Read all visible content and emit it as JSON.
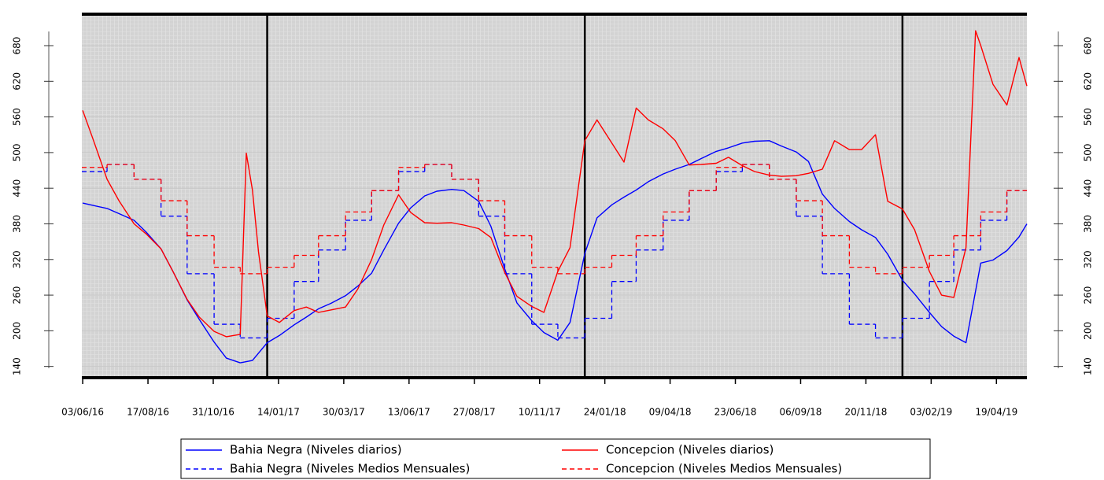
{
  "chart_data": {
    "type": "line",
    "xlim": [
      "02/06/16",
      "24/05/19"
    ],
    "ylim": [
      121,
      733
    ],
    "xticks": [
      "03/06/16",
      "17/08/16",
      "31/10/16",
      "14/01/17",
      "30/03/17",
      "13/06/17",
      "27/08/17",
      "10/11/17",
      "24/01/18",
      "09/04/18",
      "23/06/18",
      "06/09/18",
      "20/11/18",
      "03/02/19",
      "19/04/19"
    ],
    "yticks": [
      140,
      200,
      260,
      320,
      380,
      440,
      500,
      560,
      620,
      680
    ],
    "vlines": [
      "01/01/17",
      "01/01/18",
      "01/01/19"
    ],
    "grid": true,
    "legend": "bottom",
    "x": [
      "01/06/16",
      "01/07/16",
      "01/08/16",
      "01/09/16",
      "01/10/16",
      "01/11/16",
      "01/12/16",
      "01/01/17",
      "01/02/17",
      "01/03/17",
      "01/04/17",
      "01/05/17",
      "01/06/17",
      "01/07/17",
      "01/08/17",
      "01/09/17",
      "01/10/17",
      "01/11/17",
      "01/12/17",
      "01/01/18",
      "01/02/18",
      "01/03/18",
      "01/04/18",
      "01/05/18",
      "01/06/18",
      "01/07/18",
      "01/08/18",
      "01/09/18",
      "01/10/18",
      "01/11/18",
      "01/12/18",
      "01/01/19",
      "01/02/19",
      "01/03/19",
      "01/04/19",
      "01/05/19"
    ],
    "series": [
      {
        "name": "Bahia Negra (Niveles diarios)",
        "color": "#0000ff",
        "linestyle": "solid",
        "x": [
          "03/06/16",
          "15/06/16",
          "01/07/16",
          "15/07/16",
          "01/08/16",
          "15/08/16",
          "01/09/16",
          "15/09/16",
          "01/10/16",
          "15/10/16",
          "01/11/16",
          "15/11/16",
          "01/12/16",
          "15/12/16",
          "01/01/17",
          "15/01/17",
          "01/02/17",
          "15/02/17",
          "01/03/17",
          "15/03/17",
          "01/04/17",
          "15/04/17",
          "01/05/17",
          "15/05/17",
          "01/06/17",
          "15/06/17",
          "01/07/17",
          "15/07/17",
          "01/08/17",
          "15/08/17",
          "01/09/17",
          "15/09/17",
          "01/10/17",
          "15/10/17",
          "01/11/17",
          "15/11/17",
          "01/12/17",
          "15/12/17",
          "01/01/18",
          "15/01/18",
          "01/02/18",
          "15/02/18",
          "01/03/18",
          "15/03/18",
          "01/04/18",
          "15/04/18",
          "01/05/18",
          "15/05/18",
          "01/06/18",
          "15/06/18",
          "01/07/18",
          "15/07/18",
          "01/08/18",
          "15/08/18",
          "01/09/18",
          "15/09/18",
          "01/10/18",
          "15/10/18",
          "01/11/18",
          "15/11/18",
          "01/12/18",
          "15/12/18",
          "01/01/19",
          "15/01/19",
          "01/02/19",
          "15/02/19",
          "01/03/19",
          "15/03/19",
          "01/04/19",
          "15/04/19",
          "01/05/19",
          "15/05/19",
          "24/05/19"
        ],
        "values": [
          415,
          411,
          406,
          397,
          386,
          366,
          338,
          299,
          252,
          219,
          181,
          154,
          146,
          150,
          180,
          192,
          210,
          223,
          237,
          246,
          259,
          275,
          297,
          336,
          381,
          407,
          427,
          435,
          438,
          436,
          418,
          376,
          304,
          247,
          217,
          197,
          184,
          214,
          330,
          390,
          412,
          425,
          437,
          451,
          464,
          472,
          480,
          490,
          502,
          508,
          516,
          519,
          520,
          511,
          501,
          485,
          430,
          406,
          384,
          370,
          357,
          329,
          285,
          262,
          231,
          207,
          191,
          180,
          314,
          319,
          335,
          358,
          380
        ]
      },
      {
        "name": "Bahia Negra (Niveles Medios Mensuales)",
        "color": "#0000ff",
        "linestyle": "dashed",
        "drawstyle": "steps-post",
        "values": [
          468,
          480,
          455,
          393,
          296,
          211,
          188,
          221,
          283,
          336,
          386,
          436,
          468,
          480,
          455,
          393,
          296,
          211,
          188,
          221,
          283,
          336,
          386,
          436,
          468,
          480,
          455,
          393,
          296,
          211,
          188,
          221,
          283,
          336,
          386,
          436
        ]
      },
      {
        "name": "Concepcion (Niveles diarios)",
        "color": "#ff0000",
        "linestyle": "solid",
        "x": [
          "03/06/16",
          "15/06/16",
          "01/07/16",
          "15/07/16",
          "01/08/16",
          "15/08/16",
          "01/09/16",
          "15/09/16",
          "01/10/16",
          "15/10/16",
          "01/11/16",
          "15/11/16",
          "01/12/16",
          "08/12/16",
          "15/12/16",
          "22/12/16",
          "01/01/17",
          "15/01/17",
          "01/02/17",
          "15/02/17",
          "01/03/17",
          "15/03/17",
          "01/04/17",
          "15/04/17",
          "01/05/17",
          "15/05/17",
          "01/06/17",
          "15/06/17",
          "01/07/17",
          "15/07/17",
          "01/08/17",
          "15/08/17",
          "01/09/17",
          "15/09/17",
          "01/10/17",
          "15/10/17",
          "01/11/17",
          "15/11/17",
          "01/12/17",
          "15/12/17",
          "01/01/18",
          "15/01/18",
          "01/02/18",
          "15/02/18",
          "01/03/18",
          "15/03/18",
          "01/04/18",
          "15/04/18",
          "01/05/18",
          "15/05/18",
          "01/06/18",
          "15/06/18",
          "01/07/18",
          "15/07/18",
          "01/08/18",
          "15/08/18",
          "01/09/18",
          "15/09/18",
          "01/10/18",
          "15/10/18",
          "01/11/18",
          "15/11/18",
          "01/12/18",
          "15/12/18",
          "01/01/19",
          "15/01/19",
          "01/02/19",
          "15/02/19",
          "01/03/19",
          "15/03/19",
          "26/03/19",
          "01/04/19",
          "15/04/19",
          "01/05/19",
          "15/05/19",
          "24/05/19"
        ],
        "values": [
          571,
          522,
          455,
          418,
          380,
          363,
          338,
          299,
          253,
          223,
          199,
          190,
          194,
          499,
          437,
          333,
          225,
          214,
          234,
          240,
          231,
          235,
          240,
          270,
          320,
          378,
          429,
          399,
          382,
          381,
          382,
          378,
          372,
          357,
          298,
          258,
          241,
          231,
          300,
          340,
          520,
          555,
          516,
          484,
          575,
          555,
          540,
          520,
          479,
          480,
          482,
          492,
          478,
          468,
          462,
          460,
          461,
          465,
          472,
          520,
          505,
          505,
          530,
          418,
          405,
          370,
          300,
          260,
          256,
          340,
          705,
          680,
          615,
          580,
          660,
          612
        ]
      },
      {
        "name": "Concepcion (Niveles Medios Mensuales)",
        "color": "#ff0000",
        "linestyle": "dashed",
        "drawstyle": "steps-post",
        "values": [
          475,
          480,
          455,
          419,
          360,
          307,
          296,
          307,
          327,
          360,
          400,
          436,
          475,
          480,
          455,
          419,
          360,
          307,
          296,
          307,
          327,
          360,
          400,
          436,
          475,
          480,
          455,
          419,
          360,
          307,
          296,
          307,
          327,
          360,
          400,
          436
        ]
      }
    ]
  }
}
